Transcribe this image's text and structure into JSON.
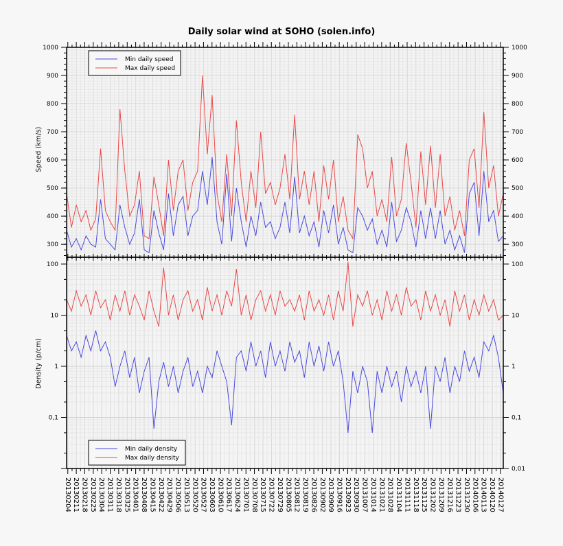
{
  "chart_data": [
    {
      "type": "line",
      "title": "Daily solar wind at SOHO (solen.info)",
      "ylabel": "Speed (km/s)",
      "ylim": [
        254,
        1000
      ],
      "yticks": [
        300,
        400,
        500,
        600,
        700,
        800,
        900,
        1000
      ],
      "ytick_labels": [
        "300",
        "400",
        "500",
        "600",
        "700",
        "800",
        "900",
        "1000"
      ],
      "grid": true,
      "legend": "top-left",
      "x": [
        "20130203",
        "20130207",
        "20130211",
        "20130215",
        "20130219",
        "20130223",
        "20130227",
        "20130303",
        "20130307",
        "20130311",
        "20130315",
        "20130319",
        "20130323",
        "20130327",
        "20130331",
        "20130404",
        "20130408",
        "20130412",
        "20130416",
        "20130420",
        "20130424",
        "20130428",
        "20130502",
        "20130506",
        "20130510",
        "20130514",
        "20130518",
        "20130522",
        "20130526",
        "20130530",
        "20130603",
        "20130607",
        "20130611",
        "20130615",
        "20130619",
        "20130623",
        "20130627",
        "20130701",
        "20130705",
        "20130709",
        "20130713",
        "20130717",
        "20130721",
        "20130725",
        "20130729",
        "20130802",
        "20130806",
        "20130810",
        "20130814",
        "20130818",
        "20130822",
        "20130826",
        "20130830",
        "20130903",
        "20130907",
        "20130911",
        "20130915",
        "20130919",
        "20130923",
        "20130927",
        "20131001",
        "20131005",
        "20131009",
        "20131013",
        "20131017",
        "20131021",
        "20131025",
        "20131029",
        "20131102",
        "20131106",
        "20131110",
        "20131114",
        "20131118",
        "20131122",
        "20131126",
        "20131130",
        "20131204",
        "20131208",
        "20131212",
        "20131216",
        "20131220",
        "20131224",
        "20131228",
        "20140101",
        "20140105",
        "20140109",
        "20140113",
        "20140117",
        "20140121",
        "20140125",
        "20140129"
      ],
      "series": [
        {
          "name": "Min daily speed",
          "color": "#4a4ae0",
          "values": [
            350,
            290,
            320,
            280,
            330,
            300,
            290,
            460,
            320,
            300,
            280,
            440,
            360,
            300,
            340,
            460,
            280,
            270,
            420,
            340,
            280,
            480,
            330,
            440,
            470,
            330,
            400,
            420,
            560,
            440,
            610,
            380,
            300,
            550,
            310,
            500,
            380,
            290,
            400,
            330,
            450,
            360,
            380,
            320,
            360,
            450,
            340,
            540,
            340,
            400,
            330,
            380,
            290,
            420,
            340,
            440,
            300,
            360,
            280,
            270,
            430,
            400,
            350,
            390,
            300,
            350,
            290,
            450,
            310,
            350,
            430,
            380,
            290,
            420,
            320,
            430,
            320,
            420,
            300,
            350,
            280,
            330,
            270,
            480,
            520,
            330,
            560,
            380,
            420,
            310,
            330
          ]
        },
        {
          "name": "Max daily speed",
          "color": "#e84848",
          "values": [
            480,
            360,
            440,
            380,
            420,
            350,
            390,
            640,
            420,
            380,
            350,
            780,
            560,
            400,
            440,
            560,
            330,
            320,
            540,
            440,
            330,
            600,
            420,
            560,
            600,
            420,
            520,
            560,
            900,
            620,
            830,
            480,
            380,
            620,
            400,
            740,
            520,
            380,
            560,
            430,
            700,
            480,
            520,
            440,
            500,
            620,
            460,
            760,
            460,
            560,
            440,
            560,
            380,
            580,
            460,
            600,
            380,
            470,
            350,
            320,
            690,
            640,
            500,
            560,
            400,
            460,
            380,
            610,
            400,
            460,
            660,
            520,
            360,
            630,
            440,
            650,
            430,
            620,
            400,
            470,
            350,
            420,
            330,
            600,
            640,
            430,
            770,
            500,
            580,
            400,
            480
          ]
        }
      ]
    },
    {
      "type": "line",
      "ylabel": "Density (p/cm)",
      "yscale": "log",
      "ylim": [
        0.01,
        136
      ],
      "yticks": [
        0.01,
        0.1,
        1,
        10,
        100
      ],
      "ytick_labels": [
        "0,01",
        "0,1",
        "1",
        "10",
        "100"
      ],
      "grid": true,
      "legend": "bottom-left",
      "xtick_labels": [
        "20130204",
        "20130211",
        "20130218",
        "20130225",
        "20130304",
        "20130311",
        "20130318",
        "20130325",
        "20130401",
        "20130408",
        "20130415",
        "20130422",
        "20130429",
        "20130506",
        "20130513",
        "20130520",
        "20130527",
        "20130603",
        "20130610",
        "20130617",
        "20130624",
        "20130701",
        "20130708",
        "20130715",
        "20130722",
        "20130729",
        "20130805",
        "20130812",
        "20130819",
        "20130826",
        "20130902",
        "20130909",
        "20130916",
        "20130923",
        "20130930",
        "20131007",
        "20131014",
        "20131021",
        "20131028",
        "20131104",
        "20131111",
        "20131118",
        "20131125",
        "20131202",
        "20131209",
        "20131216",
        "20131223",
        "20131230",
        "20140106",
        "20140113",
        "20140120",
        "20140127"
      ],
      "series": [
        {
          "name": "Min daily density",
          "color": "#4a4ae0",
          "values": [
            4,
            2,
            3,
            1.5,
            4,
            2,
            5,
            2,
            3,
            1.5,
            0.4,
            1,
            2,
            0.6,
            1.5,
            0.3,
            0.8,
            1.5,
            0.06,
            0.5,
            1.2,
            0.4,
            1,
            0.3,
            0.8,
            1.5,
            0.4,
            0.8,
            0.3,
            1,
            0.6,
            2,
            1,
            0.5,
            0.07,
            1.5,
            2,
            0.8,
            3,
            1,
            2,
            0.6,
            3,
            1,
            2,
            0.8,
            3,
            1.2,
            2,
            0.6,
            3,
            1,
            2.5,
            0.8,
            3,
            1,
            2,
            0.5,
            0.05,
            0.8,
            0.3,
            1,
            0.5,
            0.05,
            0.8,
            0.3,
            1,
            0.4,
            0.8,
            0.2,
            1,
            0.4,
            0.8,
            0.3,
            1,
            0.06,
            1,
            0.5,
            1.5,
            0.3,
            1,
            0.5,
            2,
            0.8,
            1.5,
            0.6,
            3,
            2,
            4,
            1.5,
            0.3
          ]
        },
        {
          "name": "Max daily density",
          "color": "#e84848",
          "values": [
            20,
            12,
            30,
            15,
            25,
            10,
            30,
            14,
            20,
            8,
            25,
            12,
            30,
            10,
            25,
            15,
            8,
            30,
            12,
            6,
            85,
            10,
            25,
            8,
            20,
            30,
            12,
            20,
            8,
            35,
            12,
            25,
            10,
            30,
            15,
            80,
            10,
            25,
            8,
            20,
            30,
            12,
            25,
            10,
            30,
            15,
            20,
            12,
            25,
            8,
            30,
            12,
            20,
            10,
            25,
            8,
            30,
            12,
            110,
            6,
            25,
            15,
            30,
            10,
            20,
            8,
            30,
            12,
            25,
            10,
            35,
            15,
            20,
            8,
            30,
            12,
            25,
            10,
            20,
            6,
            30,
            12,
            25,
            8,
            20,
            10,
            25,
            12,
            20,
            8,
            10
          ]
        }
      ]
    }
  ]
}
